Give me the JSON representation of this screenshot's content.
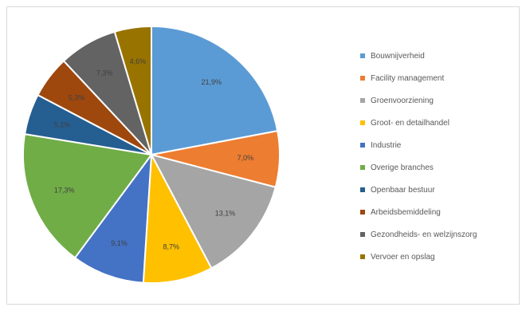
{
  "chart_data": {
    "type": "pie",
    "legend": "right",
    "slices": [
      {
        "label": "Bouwnijverheid",
        "value": 21.9,
        "value_label": "21,9%",
        "color": "#5b9bd5"
      },
      {
        "label": "Facility management",
        "value": 7.0,
        "value_label": "7,0%",
        "color": "#ed7d31"
      },
      {
        "label": "Groenvoorziening",
        "value": 13.1,
        "value_label": "13,1%",
        "color": "#a5a5a5"
      },
      {
        "label": "Groot- en detailhandel",
        "value": 8.7,
        "value_label": "8,7%",
        "color": "#ffc000"
      },
      {
        "label": "Industrie",
        "value": 9.1,
        "value_label": "9,1%",
        "color": "#4472c4"
      },
      {
        "label": "Overige branches",
        "value": 17.3,
        "value_label": "17,3%",
        "color": "#70ad47"
      },
      {
        "label": "Openbaar bestuur",
        "value": 5.1,
        "value_label": "5,1%",
        "color": "#255e91"
      },
      {
        "label": "Arbeidsbemiddeling",
        "value": 5.3,
        "value_label": "5,3%",
        "color": "#9e480e"
      },
      {
        "label": "Gezondheids- en welzijnszorg",
        "value": 7.3,
        "value_label": "7,3%",
        "color": "#636363"
      },
      {
        "label": "Vervoer en opslag",
        "value": 4.6,
        "value_label": "4,6%",
        "color": "#997300"
      }
    ]
  }
}
